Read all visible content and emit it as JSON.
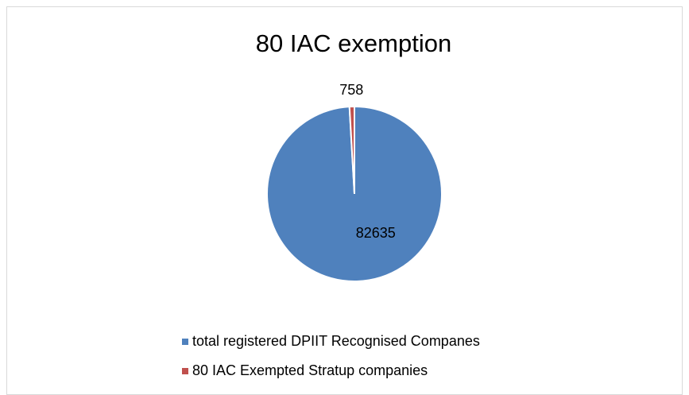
{
  "chart_data": {
    "type": "pie",
    "title": "80 IAC exemption",
    "categories": [
      "total registered DPIIT Recognised Companes",
      "80 IAC Exempted Stratup companies"
    ],
    "values": [
      82635,
      758
    ],
    "colors": [
      "#4f81bd",
      "#c0504d"
    ],
    "legend": "bottom"
  }
}
